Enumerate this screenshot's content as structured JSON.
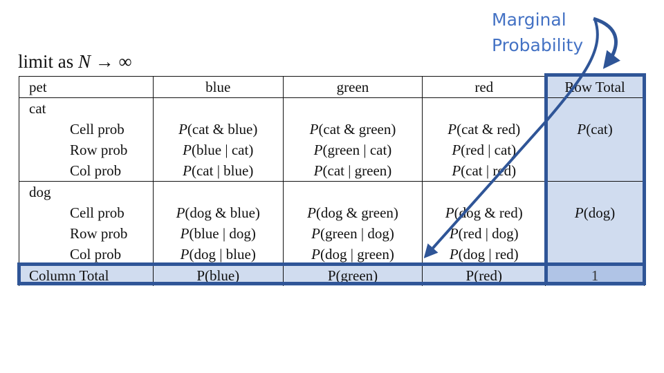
{
  "title": {
    "prefix": "limit as ",
    "var": "N",
    "suffix": " → ∞"
  },
  "annotation": {
    "line1": "Marginal",
    "line2": "Probability"
  },
  "table": {
    "headers": [
      "pet",
      "blue",
      "green",
      "red",
      "Row Total"
    ],
    "groups": [
      {
        "label": "cat",
        "rows": [
          {
            "label": "Cell prob",
            "cells": [
              "P(cat & blue)",
              "P(cat & green)",
              "P(cat & red)"
            ]
          },
          {
            "label": "Row prob",
            "cells": [
              "P(blue | cat)",
              "P(green | cat)",
              "P(red | cat)"
            ]
          },
          {
            "label": "Col prob",
            "cells": [
              "P(cat | blue)",
              "P(cat | green)",
              "P(cat | red)"
            ]
          }
        ],
        "row_total": "P(cat)"
      },
      {
        "label": "dog",
        "rows": [
          {
            "label": "Cell prob",
            "cells": [
              "P(dog & blue)",
              "P(dog & green)",
              "P(dog & red)"
            ]
          },
          {
            "label": "Row prob",
            "cells": [
              "P(blue | dog)",
              "P(green | dog)",
              "P(red | dog)"
            ]
          },
          {
            "label": "Col prob",
            "cells": [
              "P(dog | blue)",
              "P(dog | green)",
              "P(dog | red)"
            ]
          }
        ],
        "row_total": "P(dog)"
      }
    ],
    "column_total": {
      "label": "Column Total",
      "cells": [
        "P(blue)",
        "P(green)",
        "P(red)"
      ],
      "grand": "1"
    }
  },
  "colors": {
    "accent": "#2F5597",
    "annotation_text": "#4472C4",
    "highlight": "#D0DCEF",
    "grand_highlight": "#B0C4E6"
  }
}
